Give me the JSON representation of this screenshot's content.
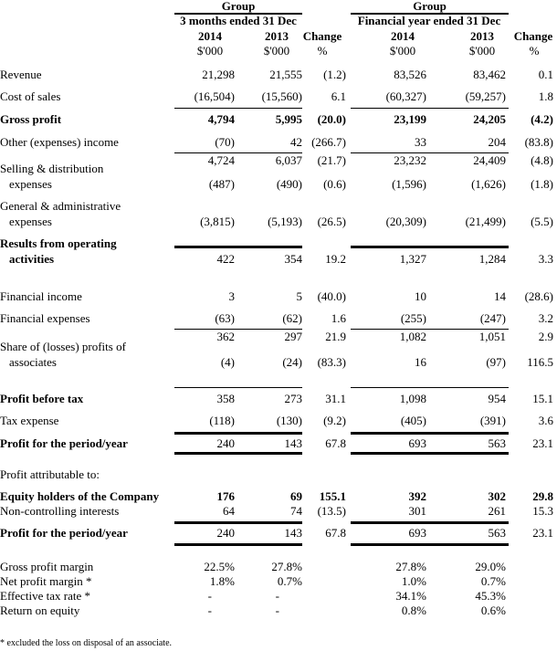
{
  "header": {
    "group_q": "Group",
    "group_fy": "Group",
    "period_q": "3 months ended 31 Dec",
    "period_fy": "Financial year ended 31 Dec",
    "years": [
      "2014",
      "2013",
      "2014",
      "2013"
    ],
    "change": "Change",
    "unit": "$'000",
    "pct": "%"
  },
  "rows": [
    {
      "label": [
        "Revenue"
      ],
      "values": [
        "21,298",
        "21,555",
        "(1.2)",
        "83,526",
        "83,462",
        "0.1"
      ],
      "bold": false
    },
    {
      "label": [
        "Cost of sales"
      ],
      "values": [
        "(16,504)",
        "(15,560)",
        "6.1",
        "(60,327)",
        "(59,257)",
        "1.8"
      ],
      "bold": false
    },
    {
      "label": [
        "Gross profit"
      ],
      "values": [
        "4,794",
        "5,995",
        "(20.0)",
        "23,199",
        "24,205",
        "(4.2)"
      ],
      "bold": true
    },
    {
      "label": [
        "Other (expenses) income"
      ],
      "values": [
        "(70)",
        "42",
        "(266.7)",
        "33",
        "204",
        "(83.8)"
      ],
      "bold": false
    },
    {
      "label": [],
      "values": [
        "4,724",
        "6,037",
        "(21.7)",
        "23,232",
        "24,409",
        "(4.8)"
      ],
      "bold": false
    },
    {
      "label": [
        "Selling & distribution",
        "expenses"
      ],
      "values": [
        "(487)",
        "(490)",
        "(0.6)",
        "(1,596)",
        "(1,626)",
        "(1.8)"
      ],
      "bold": false
    },
    {
      "label": [
        "General & administrative",
        "expenses"
      ],
      "values": [
        "(3,815)",
        "(5,193)",
        "(26.5)",
        "(20,309)",
        "(21,499)",
        "(5.5)"
      ],
      "bold": false
    },
    {
      "label": [
        "Results from operating",
        "activities"
      ],
      "values": [
        "422",
        "354",
        "19.2",
        "1,327",
        "1,284",
        "3.3"
      ],
      "bold": true,
      "label_only_bold": true
    },
    {
      "label": [
        "Financial income"
      ],
      "values": [
        "3",
        "5",
        "(40.0)",
        "10",
        "14",
        "(28.6)"
      ],
      "bold": false
    },
    {
      "label": [
        "Financial expenses"
      ],
      "values": [
        "(63)",
        "(62)",
        "1.6",
        "(255)",
        "(247)",
        "3.2"
      ],
      "bold": false
    },
    {
      "label": [],
      "values": [
        "362",
        "297",
        "21.9",
        "1,082",
        "1,051",
        "2.9"
      ],
      "bold": false
    },
    {
      "label": [
        "Share of (losses) profits of",
        "associates"
      ],
      "values": [
        "(4)",
        "(24)",
        "(83.3)",
        "16",
        "(97)",
        "116.5"
      ],
      "bold": false
    },
    {
      "label": [
        "Profit before tax"
      ],
      "values": [
        "358",
        "273",
        "31.1",
        "1,098",
        "954",
        "15.1"
      ],
      "bold": true,
      "label_only_bold": true
    },
    {
      "label": [
        "Tax expense"
      ],
      "values": [
        "(118)",
        "(130)",
        "(9.2)",
        "(405)",
        "(391)",
        "3.6"
      ],
      "bold": false
    },
    {
      "label": [
        "Profit for the period/year"
      ],
      "values": [
        "240",
        "143",
        "67.8",
        "693",
        "563",
        "23.1"
      ],
      "bold": true,
      "label_only_bold": true
    },
    {
      "label": [
        "Profit attributable to:"
      ],
      "values": [],
      "bold": false
    },
    {
      "label": [
        "Equity holders of the Company"
      ],
      "values": [
        "176",
        "69",
        "155.1",
        "392",
        "302",
        "29.8"
      ],
      "bold": true
    },
    {
      "label": [
        "Non-controlling interests"
      ],
      "values": [
        "64",
        "74",
        "(13.5)",
        "301",
        "261",
        "15.3"
      ],
      "bold": false
    },
    {
      "label": [
        "Profit for the period/year"
      ],
      "values": [
        "240",
        "143",
        "67.8",
        "693",
        "563",
        "23.1"
      ],
      "bold": true,
      "label_only_bold": true
    },
    {
      "label": [
        "Gross profit margin"
      ],
      "values": [
        "22.5%",
        "27.8%",
        "",
        "27.8%",
        "29.0%",
        ""
      ],
      "bold": false
    },
    {
      "label": [
        "Net profit margin *"
      ],
      "values": [
        "1.8%",
        "0.7%",
        "",
        "1.0%",
        "0.7%",
        ""
      ],
      "bold": false
    },
    {
      "label": [
        "Effective tax rate *"
      ],
      "values": [
        "-",
        "-",
        "",
        "34.1%",
        "45.3%",
        ""
      ],
      "bold": false
    },
    {
      "label": [
        "Return on equity"
      ],
      "values": [
        "-",
        "-",
        "",
        "0.8%",
        "0.6%",
        ""
      ],
      "bold": false
    }
  ],
  "footnote": "*  excluded the loss on disposal of an associate."
}
